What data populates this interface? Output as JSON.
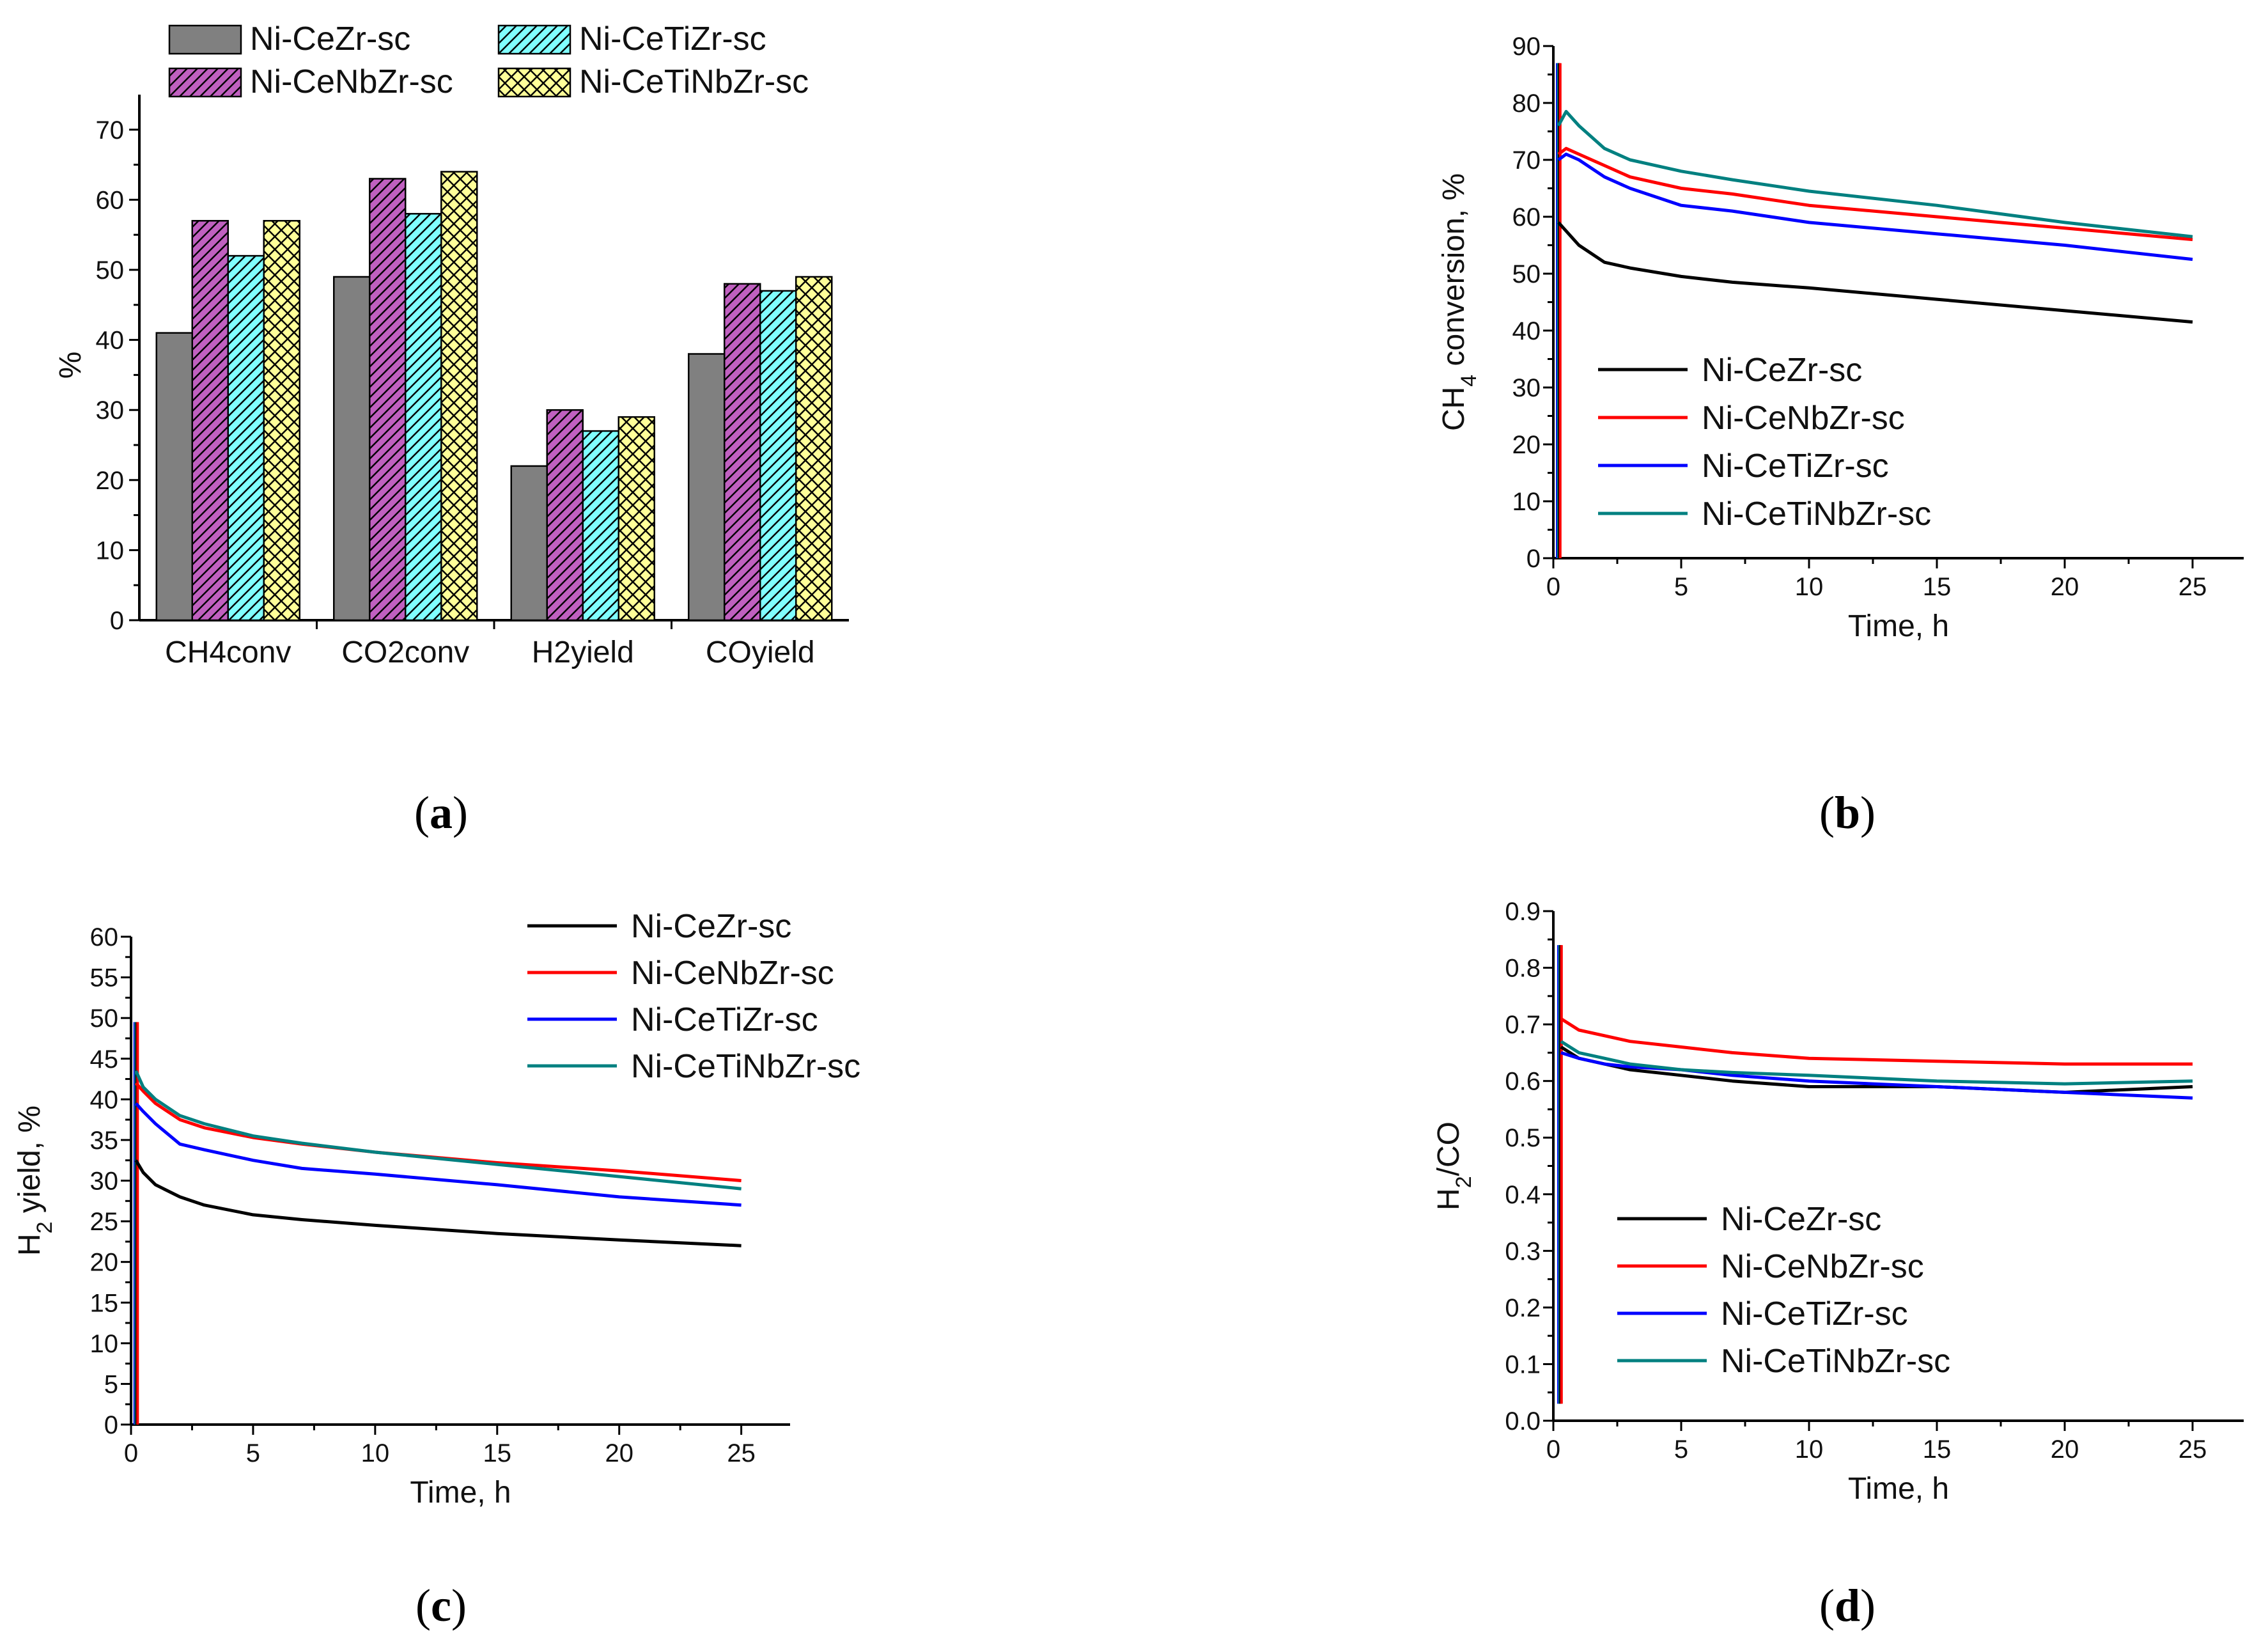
{
  "figure": {
    "captions": {
      "a": {
        "open": "(",
        "letter": "a",
        "close": ")"
      },
      "b": {
        "open": "(",
        "letter": "b",
        "close": ")"
      },
      "c": {
        "open": "(",
        "letter": "c",
        "close": ")"
      },
      "d": {
        "open": "(",
        "letter": "d",
        "close": ")"
      }
    }
  },
  "colors": {
    "ni_cezr": "#000000",
    "ni_cenbzr": "#ff0000",
    "ni_cetizr": "#0000ff",
    "ni_cetinbzr": "#008080",
    "bar_gray": "#808080",
    "bar_purple": "#c060c0",
    "bar_cyan": "#80ffff",
    "bar_yellow": "#ffff99"
  },
  "chart_data": [
    {
      "id": "a",
      "type": "bar",
      "title": "",
      "xlabel": "",
      "ylabel": "%",
      "ylim": [
        0,
        75
      ],
      "yticks": [
        "0",
        "10",
        "20",
        "30",
        "40",
        "50",
        "60",
        "70"
      ],
      "categories": [
        "CH4conv",
        "CO2conv",
        "H2yield",
        "COyield"
      ],
      "series": [
        {
          "name": "Ni-CeZr-sc",
          "values": [
            41,
            49,
            22,
            38
          ]
        },
        {
          "name": "Ni-CeNbZr-sc",
          "values": [
            57,
            63,
            30,
            48
          ]
        },
        {
          "name": "Ni-CeTiZr-sc",
          "values": [
            52,
            58,
            27,
            47
          ]
        },
        {
          "name": "Ni-CeTiNbZr-sc",
          "values": [
            57,
            64,
            29,
            49
          ]
        }
      ],
      "legend": "top"
    },
    {
      "id": "b",
      "type": "line",
      "title": "",
      "xlabel": "Time, h",
      "ylabel": {
        "pre": "CH",
        "sub": "4",
        "post": " conversion, %"
      },
      "xlim": [
        0,
        27
      ],
      "ylim": [
        0,
        90
      ],
      "xticks": [
        "0",
        "5",
        "10",
        "15",
        "20",
        "25"
      ],
      "yticks": [
        "0",
        "10",
        "20",
        "30",
        "40",
        "50",
        "60",
        "70",
        "80",
        "90"
      ],
      "series": [
        {
          "name": "Ni-CeZr-sc",
          "x": [
            0.2,
            1,
            2,
            3,
            5,
            7,
            10,
            15,
            20,
            25
          ],
          "y": [
            59,
            55,
            52,
            51,
            49.5,
            48.5,
            47.5,
            45.5,
            43.5,
            41.5
          ]
        },
        {
          "name": "Ni-CeNbZr-sc",
          "x": [
            0.2,
            0.5,
            1,
            2,
            3,
            5,
            7,
            10,
            15,
            20,
            25
          ],
          "y": [
            71,
            72,
            71,
            69,
            67,
            65,
            64,
            62,
            60,
            58,
            56
          ]
        },
        {
          "name": "Ni-CeTiZr-sc",
          "x": [
            0.2,
            0.5,
            1,
            2,
            3,
            5,
            7,
            10,
            15,
            20,
            25
          ],
          "y": [
            70,
            71,
            70,
            67,
            65,
            62,
            61,
            59,
            57,
            55,
            52.5
          ]
        },
        {
          "name": "Ni-CeTiNbZr-sc",
          "x": [
            0.2,
            0.5,
            1,
            2,
            3,
            5,
            7,
            10,
            15,
            20,
            25
          ],
          "y": [
            76,
            78.5,
            76,
            72,
            70,
            68,
            66.5,
            64.5,
            62,
            59,
            56.5
          ]
        }
      ],
      "spike": {
        "x": 0.15,
        "ymax": 87,
        "ymin": 0
      },
      "legend": "lower-left"
    },
    {
      "id": "c",
      "type": "line",
      "title": "",
      "xlabel": "Time, h",
      "ylabel": {
        "pre": "H",
        "sub": "2",
        "post": " yield, %"
      },
      "xlim": [
        0,
        27
      ],
      "ylim": [
        0,
        60
      ],
      "xticks": [
        "0",
        "5",
        "10",
        "15",
        "20",
        "25"
      ],
      "yticks": [
        "0",
        "5",
        "10",
        "15",
        "20",
        "25",
        "30",
        "35",
        "40",
        "45",
        "50",
        "55",
        "60"
      ],
      "series": [
        {
          "name": "Ni-CeZr-sc",
          "x": [
            0.2,
            0.5,
            1,
            2,
            3,
            5,
            7,
            10,
            15,
            20,
            25
          ],
          "y": [
            32.5,
            31,
            29.5,
            28,
            27,
            25.8,
            25.2,
            24.5,
            23.5,
            22.7,
            22
          ]
        },
        {
          "name": "Ni-CeNbZr-sc",
          "x": [
            0.2,
            0.5,
            1,
            2,
            3,
            5,
            7,
            10,
            15,
            20,
            25
          ],
          "y": [
            42,
            41,
            39.5,
            37.5,
            36.5,
            35.3,
            34.5,
            33.5,
            32.2,
            31.2,
            30
          ]
        },
        {
          "name": "Ni-CeTiZr-sc",
          "x": [
            0.2,
            0.5,
            1,
            2,
            3,
            5,
            7,
            10,
            15,
            20,
            25
          ],
          "y": [
            39.5,
            38.5,
            37,
            34.5,
            33.8,
            32.5,
            31.5,
            30.8,
            29.5,
            28,
            27
          ]
        },
        {
          "name": "Ni-CeTiNbZr-sc",
          "x": [
            0.2,
            0.5,
            1,
            2,
            3,
            5,
            7,
            10,
            15,
            20,
            25
          ],
          "y": [
            43.5,
            41.5,
            40,
            38,
            37,
            35.5,
            34.6,
            33.5,
            32,
            30.5,
            29
          ]
        }
      ],
      "spike": {
        "x": 0.15,
        "ymax": 49.5,
        "ymin": 0
      },
      "legend": "top-right"
    },
    {
      "id": "d",
      "type": "line",
      "title": "",
      "xlabel": "Time, h",
      "ylabel": {
        "pre": "H",
        "sub": "2",
        "post": "/CO"
      },
      "xlim": [
        0,
        27
      ],
      "ylim": [
        0,
        0.9
      ],
      "xticks": [
        "0",
        "5",
        "10",
        "15",
        "20",
        "25"
      ],
      "yticks": [
        "0.0",
        "0.1",
        "0.2",
        "0.3",
        "0.4",
        "0.5",
        "0.6",
        "0.7",
        "0.8",
        "0.9"
      ],
      "series": [
        {
          "name": "Ni-CeZr-sc",
          "x": [
            0.3,
            1,
            2,
            3,
            5,
            7,
            10,
            15,
            20,
            25
          ],
          "y": [
            0.66,
            0.64,
            0.63,
            0.62,
            0.61,
            0.6,
            0.59,
            0.59,
            0.58,
            0.59
          ]
        },
        {
          "name": "Ni-CeNbZr-sc",
          "x": [
            0.3,
            1,
            2,
            3,
            5,
            7,
            10,
            15,
            20,
            25
          ],
          "y": [
            0.71,
            0.69,
            0.68,
            0.67,
            0.66,
            0.65,
            0.64,
            0.635,
            0.63,
            0.63
          ]
        },
        {
          "name": "Ni-CeTiZr-sc",
          "x": [
            0.3,
            1,
            2,
            3,
            5,
            7,
            10,
            15,
            20,
            25
          ],
          "y": [
            0.65,
            0.64,
            0.63,
            0.625,
            0.62,
            0.61,
            0.6,
            0.59,
            0.58,
            0.57
          ]
        },
        {
          "name": "Ni-CeTiNbZr-sc",
          "x": [
            0.3,
            1,
            2,
            3,
            5,
            7,
            10,
            15,
            20,
            25
          ],
          "y": [
            0.67,
            0.65,
            0.64,
            0.63,
            0.62,
            0.615,
            0.61,
            0.6,
            0.595,
            0.6
          ]
        }
      ],
      "spike": {
        "x": 0.2,
        "ymax": 0.84,
        "ymin": 0.03
      },
      "legend": "lower-left"
    }
  ]
}
